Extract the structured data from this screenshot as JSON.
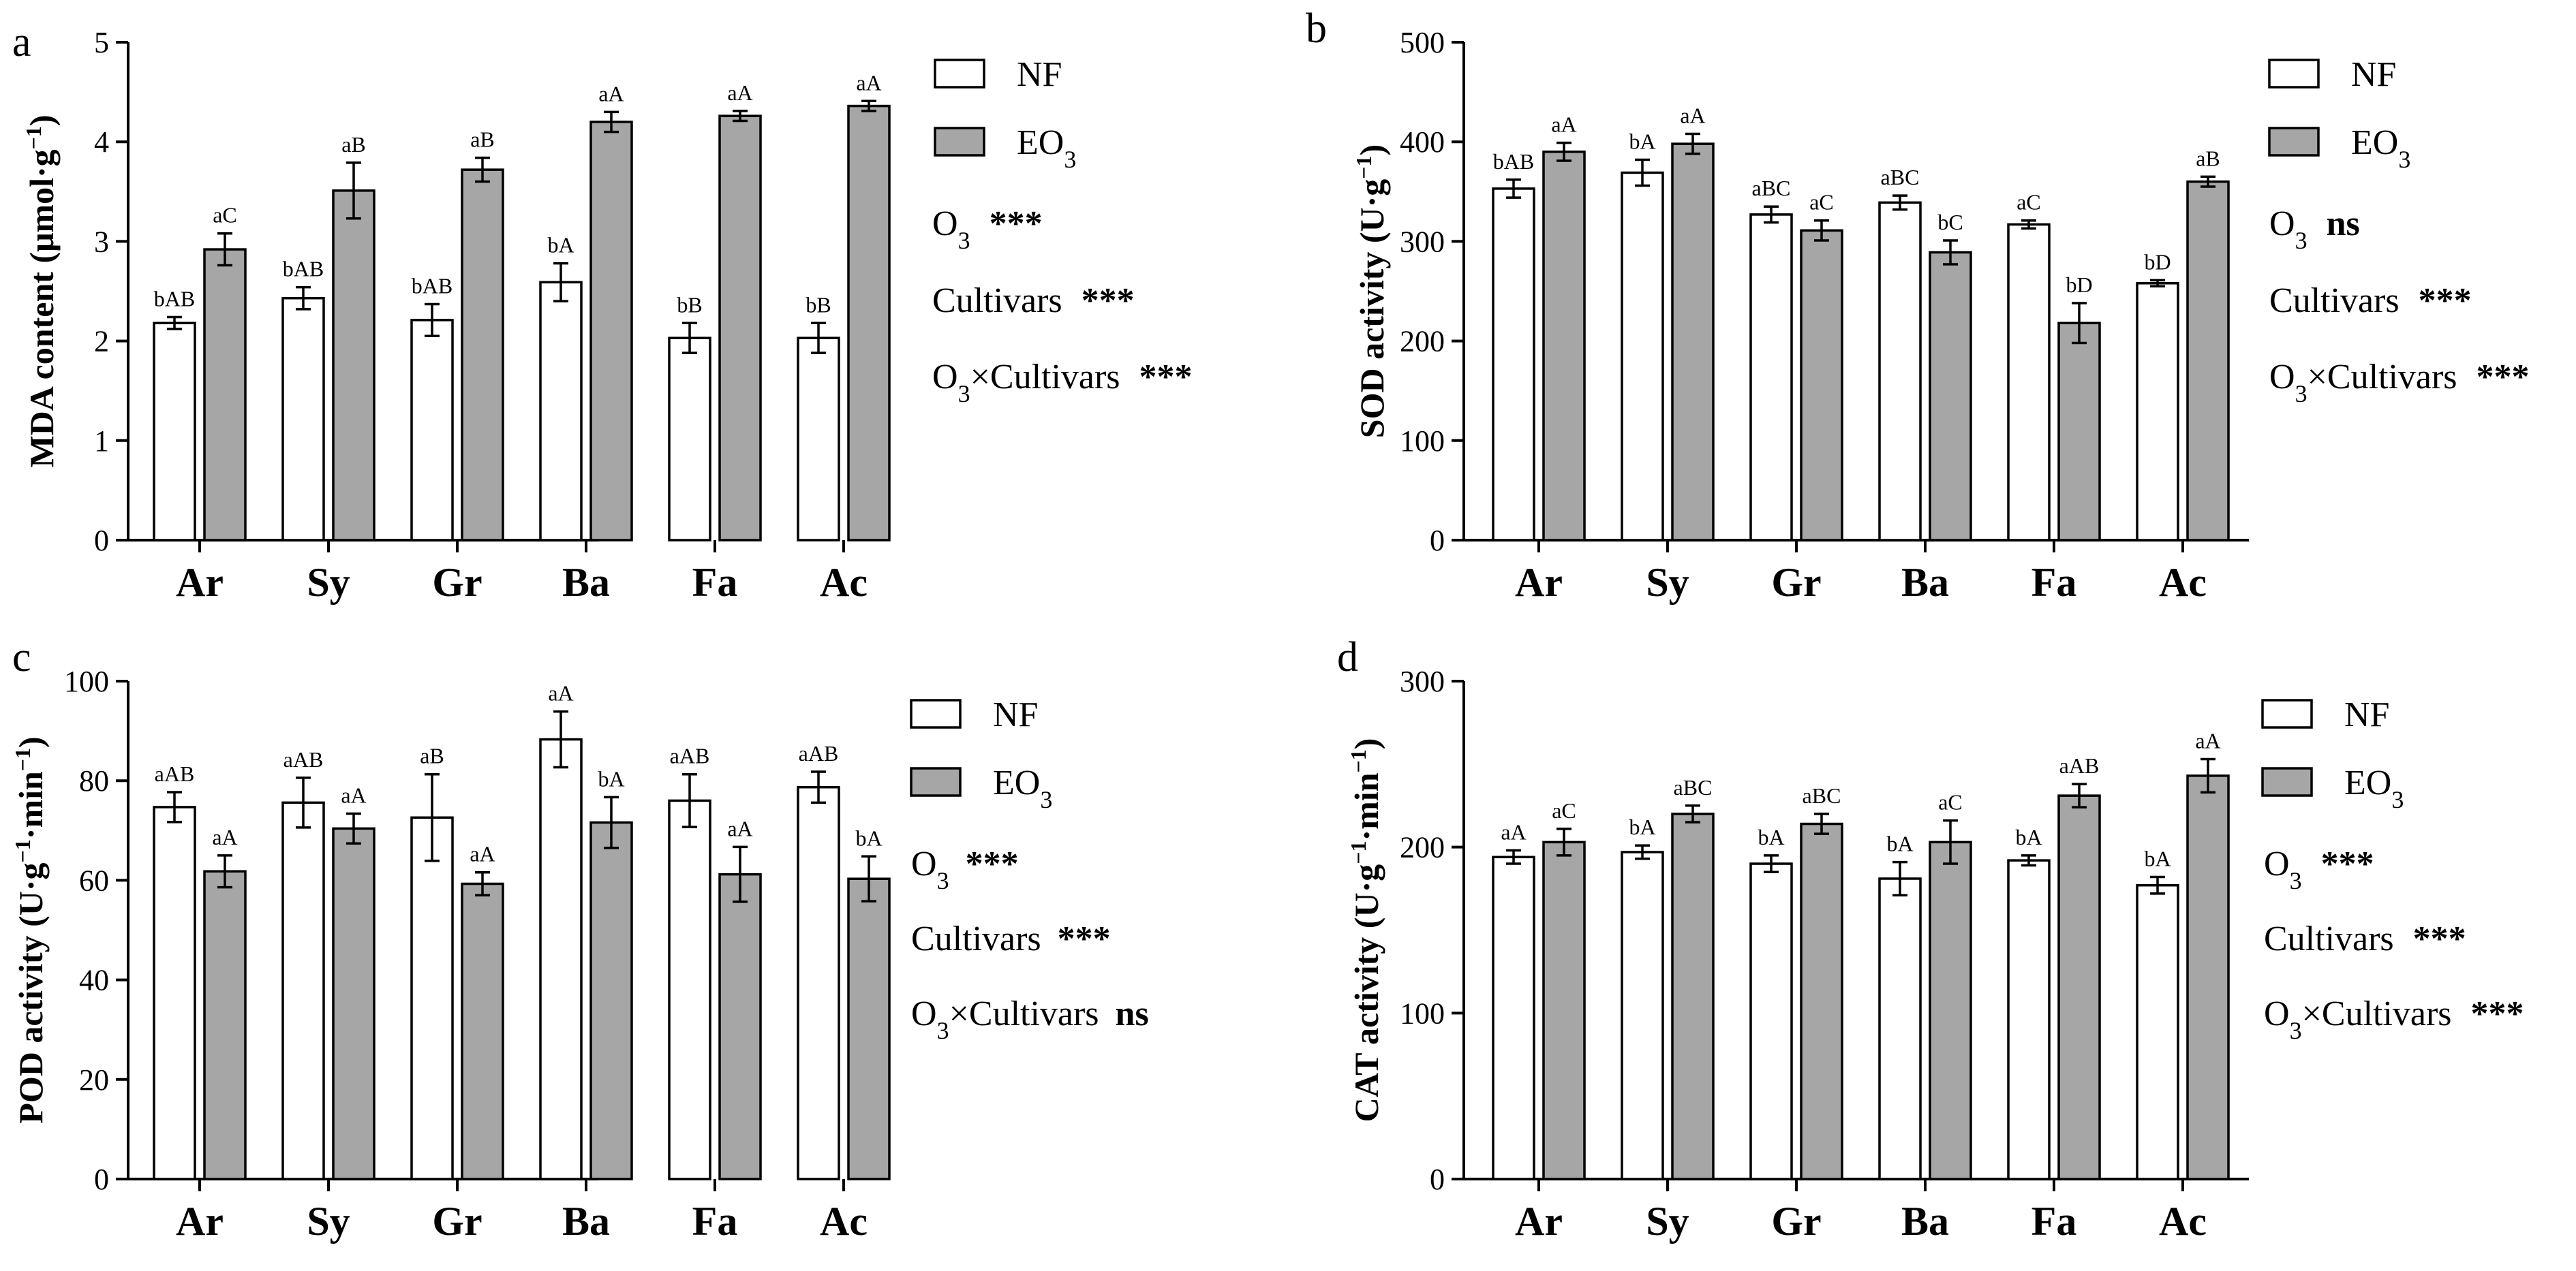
{
  "chart_data": [
    {
      "type": "bar",
      "panel": "a",
      "ylabel": "MDA content (μmol·g⁻¹)",
      "ylabel_parts": [
        "MDA content (μmol·g",
        "−1",
        ")"
      ],
      "ylim": [
        0,
        5
      ],
      "yticks": [
        0,
        1,
        2,
        3,
        4,
        5
      ],
      "categories": [
        "Ar",
        "Sy",
        "Gr",
        "Ba",
        "Fa",
        "Ac"
      ],
      "series": [
        {
          "name": "NF",
          "values": [
            2.18,
            2.43,
            2.21,
            2.59,
            2.03,
            2.03
          ],
          "errors": [
            0.06,
            0.11,
            0.16,
            0.19,
            0.15,
            0.15
          ],
          "labels": [
            "bAB",
            "bAB",
            "bAB",
            "bA",
            "bB",
            "bB"
          ]
        },
        {
          "name": "EO₃",
          "values": [
            2.92,
            3.51,
            3.72,
            4.2,
            4.26,
            4.36
          ],
          "errors": [
            0.16,
            0.28,
            0.12,
            0.1,
            0.05,
            0.05
          ],
          "labels": [
            "aC",
            "aB",
            "aB",
            "aA",
            "aA",
            "aA"
          ]
        }
      ],
      "legend": [
        {
          "label": "NF",
          "sub": ""
        },
        {
          "label": "EO",
          "sub": "3"
        }
      ],
      "stats": [
        {
          "prefix": "O",
          "sub": "3",
          "suffix": "",
          "sig": "***"
        },
        {
          "prefix": "Cultivars",
          "sub": "",
          "suffix": "",
          "sig": "***"
        },
        {
          "prefix": "O",
          "sub": "3",
          "suffix": "×Cultivars",
          "sig": "***"
        }
      ]
    },
    {
      "type": "bar",
      "panel": "b",
      "ylabel": "SOD activity (U·g⁻¹)",
      "ylabel_parts": [
        "SOD activity (U·g",
        "−1",
        ")"
      ],
      "ylim": [
        0,
        500
      ],
      "yticks": [
        0,
        100,
        200,
        300,
        400,
        500
      ],
      "categories": [
        "Ar",
        "Sy",
        "Gr",
        "Ba",
        "Fa",
        "Ac"
      ],
      "series": [
        {
          "name": "NF",
          "values": [
            353,
            369,
            327,
            339,
            317,
            258
          ],
          "errors": [
            9,
            13,
            8,
            7,
            4,
            3
          ],
          "labels": [
            "bAB",
            "bA",
            "aBC",
            "aBC",
            "aC",
            "bD"
          ]
        },
        {
          "name": "EO₃",
          "values": [
            390,
            398,
            311,
            289,
            218,
            360
          ],
          "errors": [
            9,
            10,
            10,
            12,
            20,
            5
          ],
          "labels": [
            "aA",
            "aA",
            "aC",
            "bC",
            "bD",
            "aB"
          ]
        }
      ],
      "legend": [
        {
          "label": "NF",
          "sub": ""
        },
        {
          "label": "EO",
          "sub": "3"
        }
      ],
      "stats": [
        {
          "prefix": "O",
          "sub": "3",
          "suffix": "",
          "sig": "ns"
        },
        {
          "prefix": "Cultivars",
          "sub": "",
          "suffix": "",
          "sig": "***"
        },
        {
          "prefix": "O",
          "sub": "3",
          "suffix": "×Cultivars",
          "sig": "***"
        }
      ]
    },
    {
      "type": "bar",
      "panel": "c",
      "ylabel": "POD activity (U·g⁻¹·min⁻¹)",
      "ylabel_parts": [
        "POD activity (U·g",
        "−1",
        "·min",
        "−1",
        ")"
      ],
      "ylim": [
        0,
        100
      ],
      "yticks": [
        0,
        20,
        40,
        60,
        80,
        100
      ],
      "categories": [
        "Ar",
        "Sy",
        "Gr",
        "Ba",
        "Fa",
        "Ac"
      ],
      "series": [
        {
          "name": "NF",
          "values": [
            74.7,
            75.6,
            72.6,
            88.3,
            76.0,
            78.7
          ],
          "errors": [
            3.0,
            5.0,
            8.7,
            5.6,
            5.3,
            3.1
          ],
          "labels": [
            "aAB",
            "aAB",
            "aB",
            "aA",
            "aAB",
            "aAB"
          ]
        },
        {
          "name": "EO₃",
          "values": [
            61.8,
            70.4,
            59.3,
            71.6,
            61.2,
            60.3
          ],
          "errors": [
            3.2,
            3.0,
            2.3,
            5.1,
            5.5,
            4.5
          ],
          "labels": [
            "aA",
            "aA",
            "aA",
            "bA",
            "aA",
            "bA"
          ]
        }
      ],
      "legend": [
        {
          "label": "NF",
          "sub": ""
        },
        {
          "label": "EO",
          "sub": "3"
        }
      ],
      "stats": [
        {
          "prefix": "O",
          "sub": "3",
          "suffix": "",
          "sig": "***"
        },
        {
          "prefix": "Cultivars",
          "sub": "",
          "suffix": "",
          "sig": "***"
        },
        {
          "prefix": "O",
          "sub": "3",
          "suffix": "×Cultivars",
          "sig": "ns"
        }
      ]
    },
    {
      "type": "bar",
      "panel": "d",
      "ylabel": "CAT activity (U·g⁻¹·min⁻¹)",
      "ylabel_parts": [
        "CAT activity (U·g",
        "−1",
        "·min",
        "−1",
        ")"
      ],
      "ylim": [
        0,
        300
      ],
      "yticks": [
        0,
        100,
        200,
        300
      ],
      "categories": [
        "Ar",
        "Sy",
        "Gr",
        "Ba",
        "Fa",
        "Ac"
      ],
      "series": [
        {
          "name": "NF",
          "values": [
            194,
            197,
            190,
            181,
            192,
            177
          ],
          "errors": [
            4,
            4,
            5,
            10,
            3,
            5
          ],
          "labels": [
            "aA",
            "bA",
            "bA",
            "bA",
            "bA",
            "bA"
          ]
        },
        {
          "name": "EO₃",
          "values": [
            203,
            220,
            214,
            203,
            231,
            243
          ],
          "errors": [
            8,
            5,
            6,
            13,
            7,
            10
          ],
          "labels": [
            "aC",
            "aBC",
            "aBC",
            "aC",
            "aAB",
            "aA"
          ]
        }
      ],
      "legend": [
        {
          "label": "NF",
          "sub": ""
        },
        {
          "label": "EO",
          "sub": "3"
        }
      ],
      "stats": [
        {
          "prefix": "O",
          "sub": "3",
          "suffix": "",
          "sig": "***"
        },
        {
          "prefix": "Cultivars",
          "sub": "",
          "suffix": "",
          "sig": "***"
        },
        {
          "prefix": "O",
          "sub": "3",
          "suffix": "×Cultivars",
          "sig": "***"
        }
      ]
    }
  ],
  "colors": {
    "nf_fill": "#ffffff",
    "eo3_fill": "#a6a6a6",
    "stroke": "#000000"
  }
}
